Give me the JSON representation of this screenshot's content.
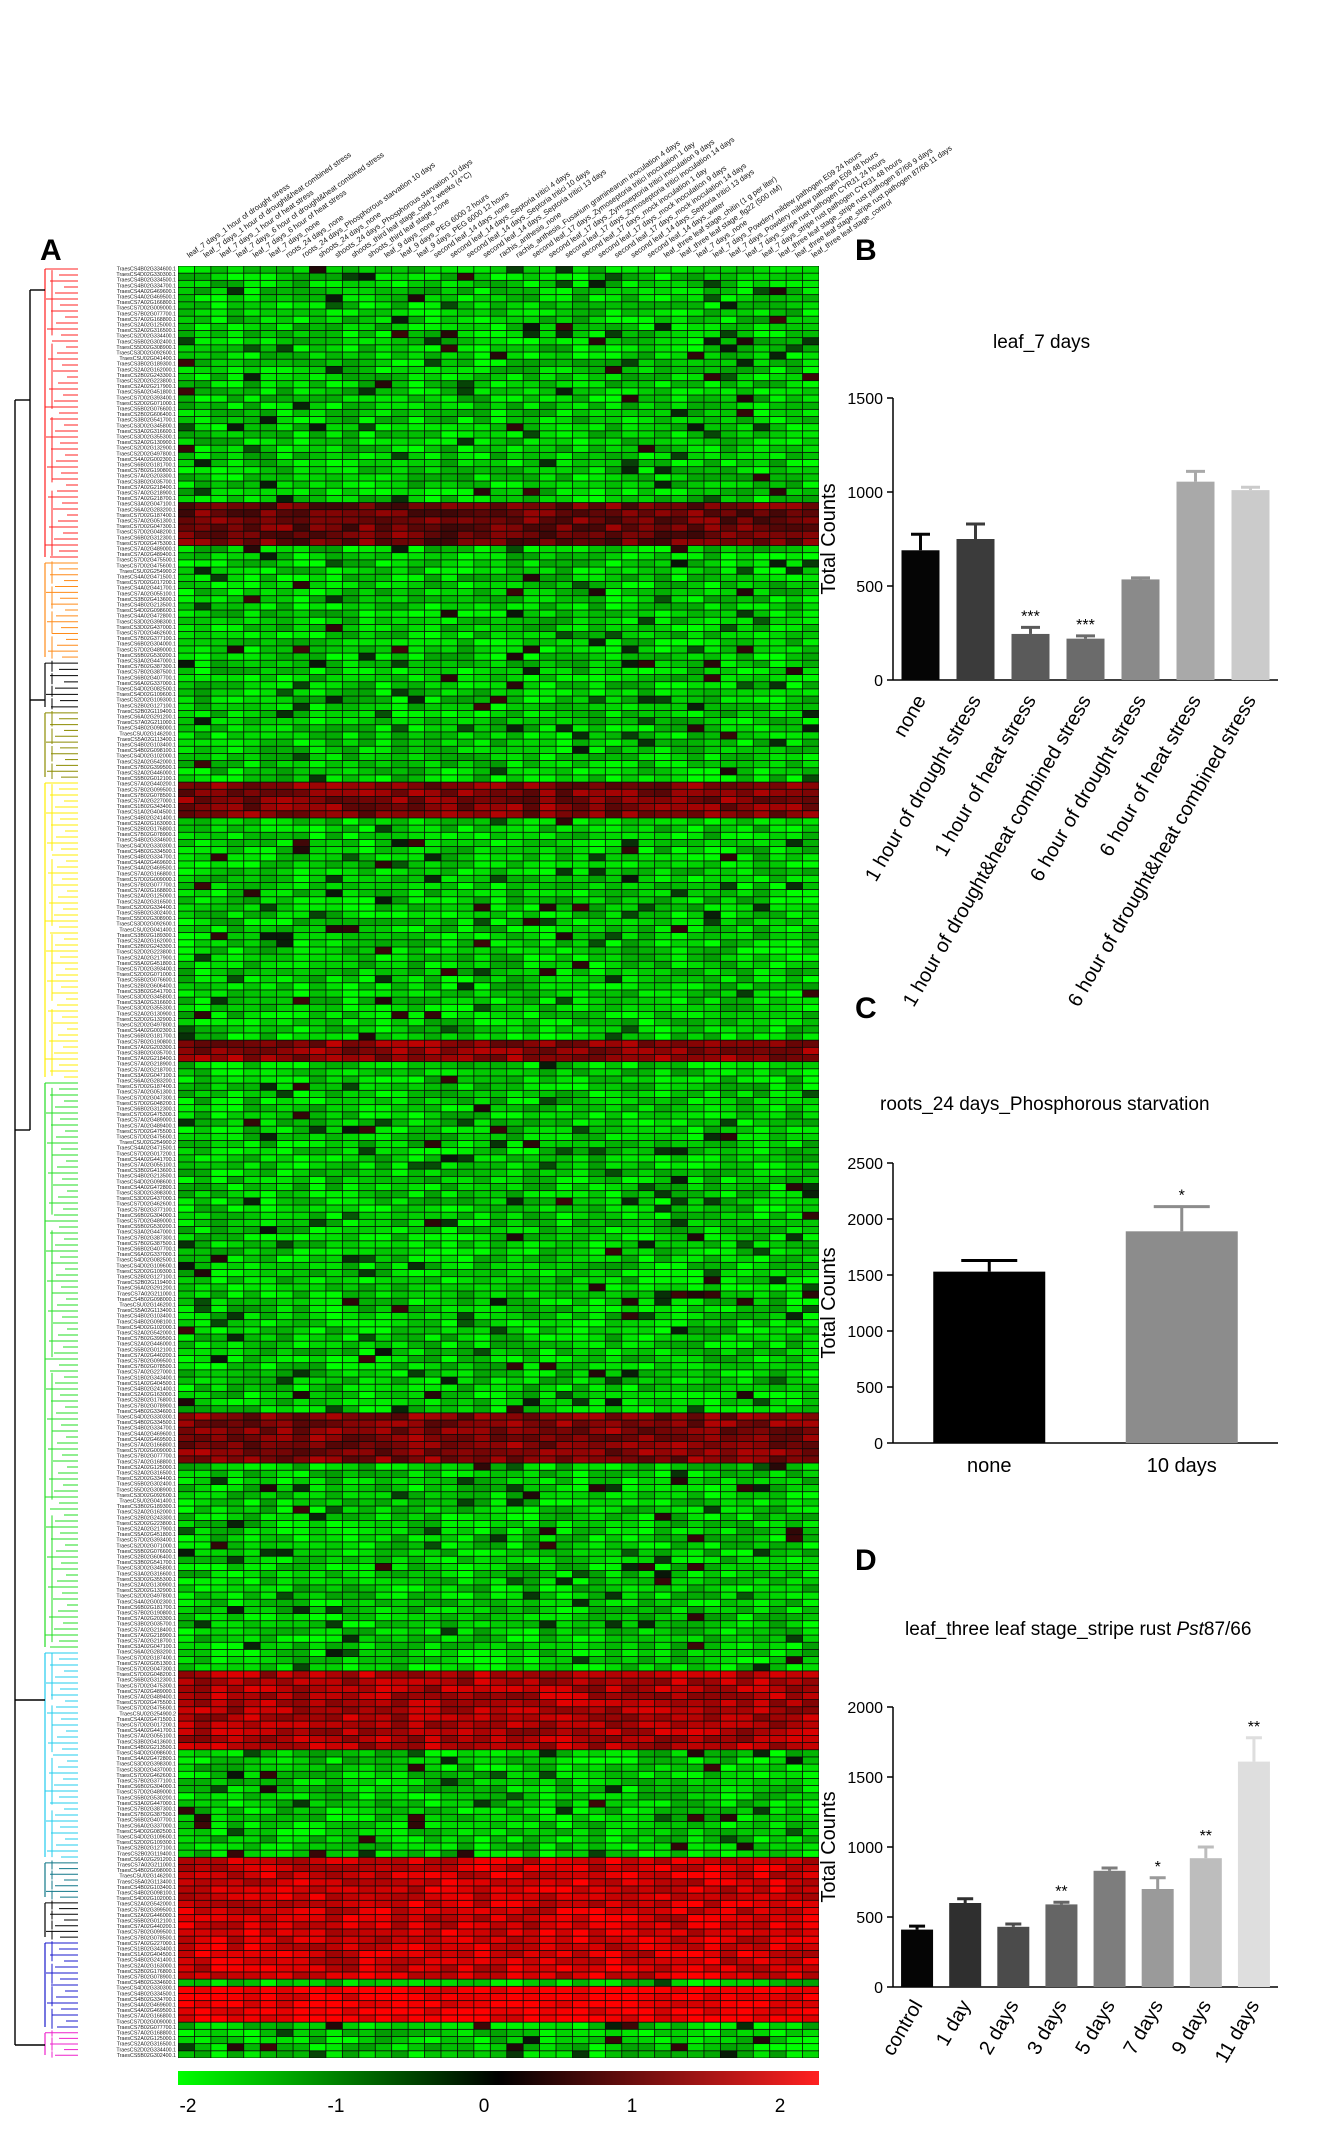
{
  "panels": {
    "A": "A",
    "B": "B",
    "C": "C",
    "D": "D"
  },
  "chart_data": [
    {
      "panel": "A",
      "type": "heatmap",
      "color_scale": {
        "min": -2,
        "max": 2,
        "ticks": [
          "-2",
          "-1",
          "0",
          "1",
          "2"
        ],
        "low_color": "#00ff00",
        "mid_color": "#000000",
        "high_color": "#ff0000"
      },
      "columns": [
        "leaf_7 days_1 hour of drought stress",
        "leaf_7 days_1 hour of drought&heat combined stress",
        "leaf_7 days_1 hour of heat stress",
        "leaf_7 days_6 hour of drought&heat combined stress",
        "leaf_7 days_6 hour of heat stress",
        "leaf_7 days_none",
        "roots_24 days_none",
        "roots_24 days_Phosphorous starvation 10 days",
        "shoots_24 days_none",
        "shoots_24 days_Phosphorous starvation 10 days",
        "shoots_third leaf stage_cold 2 weeks (4°C)",
        "shoots_third leaf stage_none",
        "leaf_9 days_none",
        "leaf_9 days_PEG 6000 2 hours",
        "leaf_9 days_PEG 6000 12 hours",
        "second leaf_14 days_none",
        "second leaf_14 days_Septoria tritici 4 days",
        "second leaf_14 days_Septoria tritici 10 days",
        "second leaf_14 days_Septoria tritici 13 days",
        "rachis_anthesis_none",
        "rachis_anthesis_Fusarium graminearum inoculation 4 days",
        "second leaf_17 days_Zymoseptoria tritici inoculation 1 day",
        "second leaf_17 days_Zymoseptoria tritici inoculation 9 days",
        "second leaf_17 days_Zymoseptoria tritici inoculation 14 days",
        "second leaf_17 days_mock inoculation 1 day",
        "second leaf_17 days_mock inoculation 9 days",
        "second leaf_17 days_mock inoculation 14 days",
        "second leaf_14 days_Septoria tritici 13 days",
        "second leaf_14 days_water",
        "leaf_three leaf stage_chitin (1 g per liter)",
        "leaf_three leaf stage_flg22 (500 nM)",
        "leaf_7 days_none",
        "leaf_7 days_Powdery mildew pathogen E09 24 hours",
        "leaf_7 days_Powdery mildew pathogen E09 48 hours",
        "leaf_7 days_stripe rust pathogen CYR31 24 hours",
        "leaf_7 days_stripe rust pathogen CYR31 48 hours",
        "leaf_three leaf stage_stripe rust pathogen 87/66 9 days",
        "leaf_three leaf stage_stripe rust pathogen 87/66 11 days",
        "leaf_three leaf stage_control"
      ],
      "rows": [
        "TraesCS4B02G334600.1",
        "TraesCS4D02G330300.1",
        "TraesCS4B02G334500.1",
        "TraesCS4B02G334700.1",
        "TraesCS4A02G469600.1",
        "TraesCS4A02G469500.1",
        "TraesCS7A02G166800.1",
        "TraesCS7D02G009000.1",
        "TraesCS7B02G077700.1",
        "TraesCS7A02G168800.1",
        "TraesCS2A02G125000.1",
        "TraesCS2A02G316500.1",
        "TraesCS2D02G334400.1",
        "TraesCS5B02G302400.1",
        "TraesCS5D02G308900.1",
        "TraesCS3D02G092600.1",
        "TraesCSU02G041400.1",
        "TraesCS3B02G189300.1",
        "TraesCS2A02G162000.1",
        "TraesCS2B02G243300.1",
        "TraesCS2D02G223800.1",
        "TraesCS2A02G217900.1",
        "TraesCS5A02G451800.1",
        "TraesCS7D02G393400.1",
        "TraesCS2D02G071000.1",
        "TraesCS5B02G076600.1",
        "TraesCS2B02G606400.1",
        "TraesCS3B02G541700.1",
        "TraesCS3D02G345800.1",
        "TraesCS3A02G316600.1",
        "TraesCS3D02G355300.1",
        "TraesCS2A02G130900.1",
        "TraesCS2D02G132900.1",
        "TraesCS2D02G497800.1",
        "TraesCS4A02G002300.1",
        "TraesCS6B02G181700.1",
        "TraesCS7B02G190800.1",
        "TraesCS7A02G203300.1",
        "TraesCS3B02G035700.1",
        "TraesCS7A02G218400.1",
        "TraesCS7A02G218900.1",
        "TraesCS7A02G218700.1",
        "TraesCS3A02G047100.1",
        "TraesCS6A02G283200.1",
        "TraesCS7D02G187400.1",
        "TraesCS7A02G051300.1",
        "TraesCS7D02G047300.1",
        "TraesCS7D02G048200.1",
        "TraesCS6B02G312300.1",
        "TraesCS7D02G475300.1",
        "TraesCS7A02G489000.1",
        "TraesCS7A02G489400.1",
        "TraesCS7D02G475500.1",
        "TraesCS7D02G475600.1",
        "TraesCSU02G254900.2",
        "TraesCS4A02G471500.1",
        "TraesCS7D02G017200.1",
        "TraesCS4A02G441700.1",
        "TraesCS7A02G055100.1",
        "TraesCS3B02G413600.1",
        "TraesCS4B02G213500.1",
        "TraesCS4D02G098600.1",
        "TraesCS4A02G472800.1",
        "TraesCS3D02G398300.1",
        "TraesCS3D02G437000.1",
        "TraesCS7D02G462600.1",
        "TraesCS7B02G377100.1",
        "TraesCS6B02G304000.1",
        "TraesCS7D02G489000.1",
        "TraesCS5B02G530200.1",
        "TraesCS3A02G447000.1",
        "TraesCS7B02G387300.1",
        "TraesCS7B02G387500.1",
        "TraesCS6B02G407700.1",
        "TraesCS6A02G337000.1",
        "TraesCS4D02G082500.1",
        "TraesCS4D02G109600.1",
        "TraesCS2D02G109300.1",
        "TraesCS2B02G127100.1",
        "TraesCS2B02G119400.1",
        "TraesCS6A02G291200.1",
        "TraesCS7A02G211000.1",
        "TraesCS4B02G098000.1",
        "TraesCSU02G146200.1",
        "TraesCS5A02G113400.1",
        "TraesCS4B02G103400.1",
        "TraesCS4B02G098100.1",
        "TraesCS4D02G102000.1",
        "TraesCS2A02G542000.1",
        "TraesCS7B02G399500.1",
        "TraesCS2A02G446000.1",
        "TraesCS5B02G012100.1",
        "TraesCS7A02G440200.1",
        "TraesCS7B02G099500.1",
        "TraesCS7B02G078500.1",
        "TraesCS7A02G227000.1",
        "TraesCS1B02G343400.1",
        "TraesCS1A02G404500.1",
        "TraesCS4B02G241400.1",
        "TraesCS2A02G163000.1",
        "TraesCS2B02G176800.1",
        "TraesCS7B02G078900.1"
      ]
    },
    {
      "panel": "B",
      "type": "bar",
      "title": "leaf_7 days",
      "ylabel": "Total Counts",
      "ylim": [
        0,
        1500
      ],
      "yticks": [
        0,
        500,
        1000,
        1500
      ],
      "categories": [
        "none",
        "1 hour of drought stress",
        "1 hour of heat stress",
        "1 hour of drought&heat combined stress",
        "6 hour of drought stress",
        "6 hour of heat stress",
        "6 hour of drought&heat combined stress"
      ],
      "values": [
        690,
        750,
        245,
        220,
        535,
        1055,
        1010
      ],
      "errors": [
        85,
        80,
        35,
        15,
        8,
        55,
        15
      ],
      "significance": [
        "",
        "",
        "***",
        "***",
        "",
        "",
        ""
      ],
      "colors": [
        "#050505",
        "#3b3b3b",
        "#5a5a5a",
        "#6b6b6b",
        "#8a8a8a",
        "#a9a9a9",
        "#cbcbcb"
      ]
    },
    {
      "panel": "C",
      "type": "bar",
      "title": "roots_24 days_Phosphorous starvation",
      "ylabel": "Total Counts",
      "ylim": [
        0,
        2500
      ],
      "yticks": [
        0,
        500,
        1000,
        1500,
        2000,
        2500
      ],
      "categories": [
        "none",
        "10 days"
      ],
      "values": [
        1530,
        1890
      ],
      "errors": [
        100,
        220
      ],
      "significance": [
        "",
        "*"
      ],
      "colors": [
        "#000000",
        "#8c8c8c"
      ]
    },
    {
      "panel": "D",
      "type": "bar",
      "title": "leaf_three leaf stage_stripe rust ",
      "title_italic": "Pst",
      "title_suffix": "87/66",
      "ylabel": "Total Counts",
      "ylim": [
        0,
        2000
      ],
      "yticks": [
        0,
        500,
        1000,
        1500,
        2000
      ],
      "categories": [
        "control",
        "1 day",
        "2 days",
        "3 days",
        "5 days",
        "7 days",
        "9 days",
        "11 days"
      ],
      "values": [
        410,
        600,
        430,
        590,
        830,
        700,
        920,
        1610
      ],
      "errors": [
        25,
        30,
        20,
        15,
        20,
        80,
        80,
        170
      ],
      "significance": [
        "",
        "",
        "",
        "**",
        "",
        "*",
        "**",
        "**"
      ],
      "colors": [
        "#050505",
        "#2f2f2f",
        "#4b4b4b",
        "#656565",
        "#7d7d7d",
        "#9a9a9a",
        "#bdbdbd",
        "#dedede"
      ]
    }
  ]
}
